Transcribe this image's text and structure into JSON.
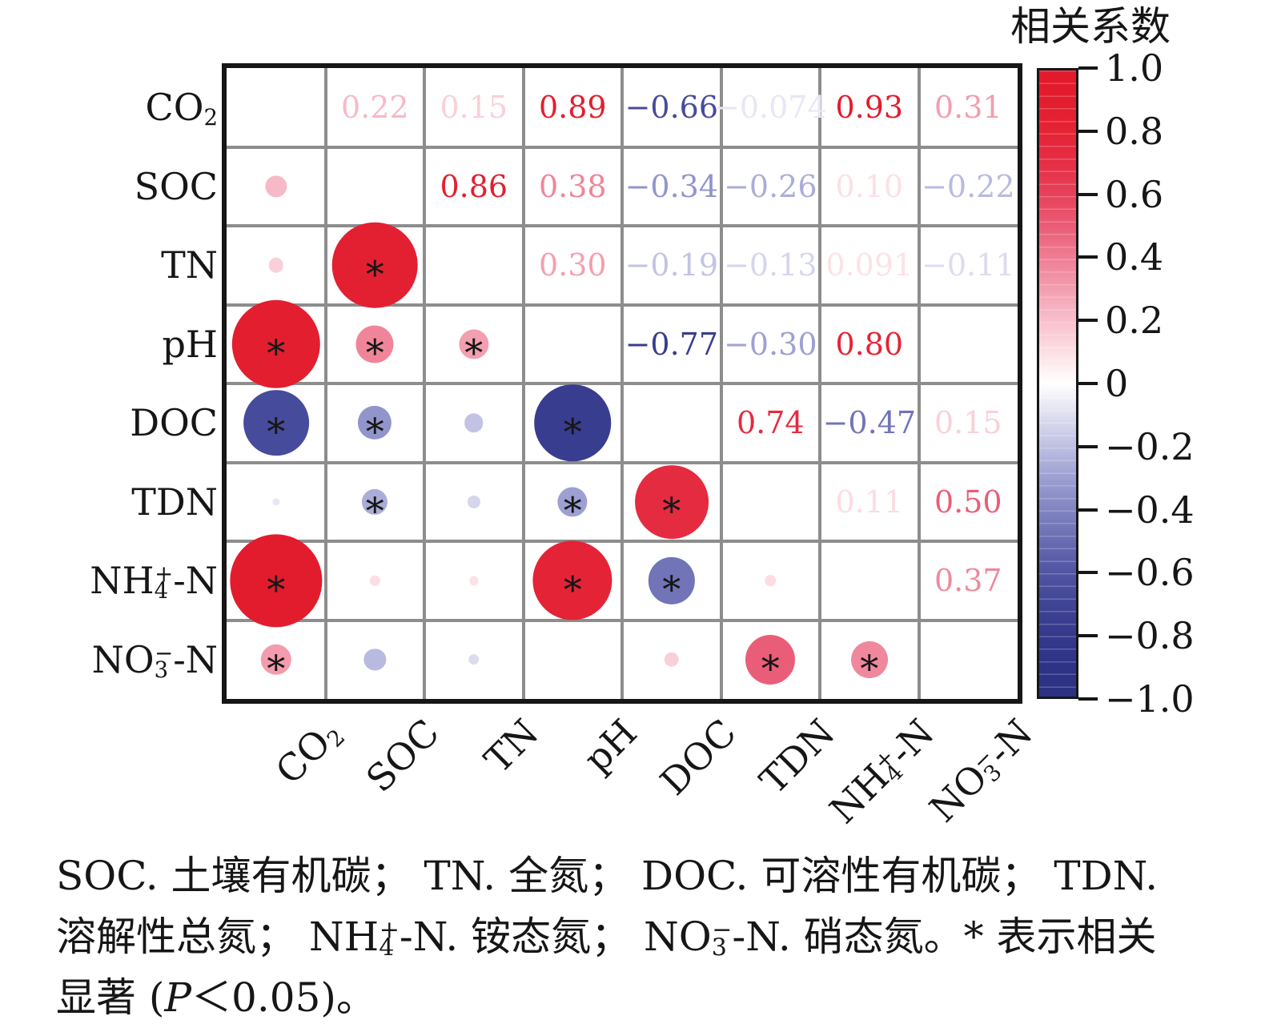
{
  "chart_data": {
    "type": "correlation-matrix",
    "layout": {
      "upper_triangle": "numbers",
      "lower_triangle": "circles",
      "diagonal": "blank",
      "grid": true,
      "legend_position": "right"
    },
    "variables": [
      "CO₂",
      "SOC",
      "TN",
      "pH",
      "DOC",
      "TDN",
      "NH₄⁺-N",
      "NO₃⁻-N"
    ],
    "variable_keys": [
      "co2",
      "soc",
      "tn",
      "ph",
      "doc",
      "tdn",
      "nh4-n",
      "no3-n"
    ],
    "values": [
      [
        null,
        0.22,
        0.15,
        0.89,
        -0.66,
        -0.074,
        0.93,
        0.31
      ],
      [
        0.22,
        null,
        0.86,
        0.38,
        -0.34,
        -0.26,
        0.1,
        -0.22
      ],
      [
        0.15,
        0.86,
        null,
        0.3,
        -0.19,
        -0.13,
        0.091,
        -0.11
      ],
      [
        0.89,
        0.38,
        0.3,
        null,
        -0.77,
        -0.3,
        0.8,
        0.0
      ],
      [
        -0.66,
        -0.34,
        -0.19,
        -0.77,
        null,
        0.74,
        -0.47,
        0.15
      ],
      [
        -0.074,
        -0.26,
        -0.13,
        -0.3,
        0.74,
        null,
        0.11,
        0.5
      ],
      [
        0.93,
        0.1,
        0.091,
        0.8,
        -0.47,
        0.11,
        null,
        0.37
      ],
      [
        0.31,
        -0.22,
        -0.11,
        0.0,
        0.15,
        0.5,
        0.37,
        null
      ]
    ],
    "upper_labels": [
      [
        "0.22",
        "0.15",
        "0.89",
        "−0.66",
        "−0.074",
        "0.93",
        "0.31"
      ],
      [
        "0.86",
        "0.38",
        "−0.34",
        "−0.26",
        "0.10",
        "−0.22"
      ],
      [
        "0.30",
        "−0.19",
        "−0.13",
        "0.091",
        "−0.11"
      ],
      [
        "−0.77",
        "−0.30",
        "0.80",
        ""
      ],
      [
        "0.74",
        "−0.47",
        "0.15"
      ],
      [
        "0.11",
        "0.50"
      ],
      [
        "0.37"
      ],
      []
    ],
    "significant_lower": [
      [],
      [
        false
      ],
      [
        false,
        true
      ],
      [
        true,
        true,
        true
      ],
      [
        true,
        true,
        false,
        true
      ],
      [
        false,
        true,
        false,
        true,
        true
      ],
      [
        true,
        false,
        false,
        true,
        true,
        false
      ],
      [
        true,
        false,
        false,
        false,
        false,
        true,
        true
      ]
    ],
    "significance_marker": "*",
    "legend": {
      "title": "相关系数",
      "ticks": [
        "1.0",
        "0.8",
        "0.6",
        "0.4",
        "0.2",
        "0",
        "−0.2",
        "−0.4",
        "−0.6",
        "−0.8",
        "−1.0"
      ],
      "range": [
        1,
        -1
      ]
    },
    "colormap": {
      "positive": [
        [
          0,
          "#ffffff"
        ],
        [
          0.1,
          "#fcdfe4"
        ],
        [
          0.2,
          "#f8c0cc"
        ],
        [
          0.3,
          "#f39fb0"
        ],
        [
          0.4,
          "#ef7e95"
        ],
        [
          0.5,
          "#ea5d78"
        ],
        [
          0.6,
          "#e7425c"
        ],
        [
          0.7,
          "#e52f46"
        ],
        [
          0.8,
          "#e42436"
        ],
        [
          0.9,
          "#e31d2e"
        ],
        [
          1,
          "#e3192b"
        ]
      ],
      "negative": [
        [
          0,
          "#ffffff"
        ],
        [
          0.1,
          "#dfdff0"
        ],
        [
          0.2,
          "#bfc0e2"
        ],
        [
          0.3,
          "#9da0d2"
        ],
        [
          0.4,
          "#8285c2"
        ],
        [
          0.5,
          "#6a6db2"
        ],
        [
          0.6,
          "#5155a3"
        ],
        [
          0.7,
          "#414595"
        ],
        [
          0.8,
          "#36398c"
        ],
        [
          0.9,
          "#2f3387"
        ],
        [
          1,
          "#2d3184"
        ]
      ],
      "grid_line_color": "#8d8d8d",
      "border_color": "#161616"
    }
  },
  "caption": {
    "lines": [
      "SOC. 土壤有机碳； TN. 全氮； DOC. 可溶性有机碳； TDN.",
      "溶解性总氮； NH₄⁺-N. 铵态氮； NO₃⁻-N. 硝态氮。* 表示相关",
      "显著 (P＜0.05)。"
    ]
  }
}
